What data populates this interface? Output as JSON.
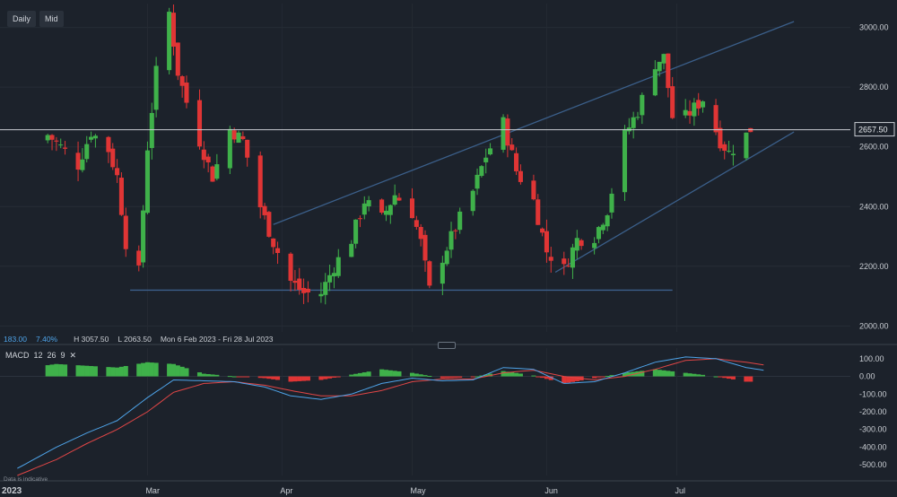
{
  "toolbar": {
    "interval": "Daily",
    "price_type": "Mid"
  },
  "stats": {
    "change": "183.00",
    "change_pct": "7.40%",
    "high": "H 3057.50",
    "low": "L 2063.50",
    "range": "Mon 6 Feb 2023 - Fri 28 Jul 2023"
  },
  "macd": {
    "label": "MACD",
    "fast": "12",
    "slow": "26",
    "signal": "9",
    "close_icon": "close-icon"
  },
  "disclaimer": "Data is indicative",
  "colors": {
    "background": "#1c222b",
    "up": "#3fb14a",
    "down": "#e03535",
    "trendline": "#3b5f8a",
    "macd_line": "#4ea3e8",
    "signal_line": "#e04646",
    "current_price_line": "#c8ccd2"
  },
  "chart_data": [
    {
      "type": "candlestick",
      "title": "",
      "current_price": 2657.5,
      "current_price_label": "2657.50",
      "ylim": [
        1980,
        3080
      ],
      "y_ticks": [
        2000,
        2200,
        2400,
        2600,
        2800,
        3000
      ],
      "y_tick_labels": [
        "2000.00",
        "2200.00",
        "2400.00",
        "2600.00",
        "2800.00",
        "3000.00"
      ],
      "x_labels": [
        "2023",
        "Mar",
        "Apr",
        "May",
        "Jun",
        "Jul"
      ],
      "x_label_dates": [
        "2023-02-01",
        "2023-03-01",
        "2023-04-01",
        "2023-05-01",
        "2023-06-01",
        "2023-07-01"
      ],
      "date_range": [
        "2023-02-06",
        "2023-07-28"
      ],
      "close_anchors": [
        {
          "date": "2023-02-06",
          "close": 2640
        },
        {
          "date": "2023-02-09",
          "close": 2600
        },
        {
          "date": "2023-02-13",
          "close": 2540
        },
        {
          "date": "2023-02-16",
          "close": 2650
        },
        {
          "date": "2023-02-20",
          "close": 2590
        },
        {
          "date": "2023-02-22",
          "close": 2500
        },
        {
          "date": "2023-02-24",
          "close": 2280
        },
        {
          "date": "2023-02-27",
          "close": 2180
        },
        {
          "date": "2023-03-01",
          "close": 2600
        },
        {
          "date": "2023-03-03",
          "close": 2850
        },
        {
          "date": "2023-03-06",
          "close": 3050
        },
        {
          "date": "2023-03-08",
          "close": 2850
        },
        {
          "date": "2023-03-10",
          "close": 2750
        },
        {
          "date": "2023-03-13",
          "close": 2620
        },
        {
          "date": "2023-03-16",
          "close": 2500
        },
        {
          "date": "2023-03-20",
          "close": 2660
        },
        {
          "date": "2023-03-23",
          "close": 2620
        },
        {
          "date": "2023-03-27",
          "close": 2400
        },
        {
          "date": "2023-03-30",
          "close": 2280
        },
        {
          "date": "2023-04-03",
          "close": 2150
        },
        {
          "date": "2023-04-06",
          "close": 2110
        },
        {
          "date": "2023-04-10",
          "close": 2110
        },
        {
          "date": "2023-04-13",
          "close": 2200
        },
        {
          "date": "2023-04-17",
          "close": 2290
        },
        {
          "date": "2023-04-20",
          "close": 2420
        },
        {
          "date": "2023-04-24",
          "close": 2360
        },
        {
          "date": "2023-04-27",
          "close": 2440
        },
        {
          "date": "2023-05-01",
          "close": 2380
        },
        {
          "date": "2023-05-03",
          "close": 2280
        },
        {
          "date": "2023-05-05",
          "close": 2120
        },
        {
          "date": "2023-05-08",
          "close": 2230
        },
        {
          "date": "2023-05-11",
          "close": 2330
        },
        {
          "date": "2023-05-15",
          "close": 2450
        },
        {
          "date": "2023-05-18",
          "close": 2570
        },
        {
          "date": "2023-05-22",
          "close": 2680
        },
        {
          "date": "2023-05-25",
          "close": 2520
        },
        {
          "date": "2023-05-29",
          "close": 2420
        },
        {
          "date": "2023-06-01",
          "close": 2250
        },
        {
          "date": "2023-06-05",
          "close": 2190
        },
        {
          "date": "2023-06-08",
          "close": 2290
        },
        {
          "date": "2023-06-12",
          "close": 2300
        },
        {
          "date": "2023-06-15",
          "close": 2390
        },
        {
          "date": "2023-06-19",
          "close": 2640
        },
        {
          "date": "2023-06-22",
          "close": 2720
        },
        {
          "date": "2023-06-26",
          "close": 2880
        },
        {
          "date": "2023-06-28",
          "close": 2900
        },
        {
          "date": "2023-06-30",
          "close": 2700
        },
        {
          "date": "2023-07-03",
          "close": 2700
        },
        {
          "date": "2023-07-07",
          "close": 2760
        },
        {
          "date": "2023-07-11",
          "close": 2620
        },
        {
          "date": "2023-07-13",
          "close": 2580
        },
        {
          "date": "2023-07-17",
          "close": 2640
        },
        {
          "date": "2023-07-18",
          "close": 2660
        }
      ],
      "trendlines": [
        {
          "name": "upper_channel",
          "from": {
            "date": "2023-03-30",
            "price": 2340
          },
          "to": {
            "date": "2023-07-28",
            "price": 3020
          }
        },
        {
          "name": "lower_channel",
          "from": {
            "date": "2023-06-03",
            "price": 2180
          },
          "to": {
            "date": "2023-07-28",
            "price": 2650
          }
        },
        {
          "name": "support",
          "from": {
            "date": "2023-02-25",
            "price": 2120
          },
          "to": {
            "date": "2023-06-30",
            "price": 2120
          }
        }
      ]
    },
    {
      "type": "macd",
      "series": [
        {
          "name": "MACD",
          "color": "#4ea3e8"
        },
        {
          "name": "Signal",
          "color": "#e04646"
        },
        {
          "name": "Histogram"
        }
      ],
      "ylim": [
        -560,
        160
      ],
      "y_ticks": [
        100,
        0,
        -100,
        -200,
        -300,
        -400,
        -500
      ],
      "y_tick_labels": [
        "100.00",
        "0.00",
        "-100.00",
        "-200.00",
        "-300.00",
        "-400.00",
        "-500.00"
      ],
      "macd_anchors": [
        {
          "date": "2023-01-30",
          "v": -520
        },
        {
          "date": "2023-02-08",
          "v": -400
        },
        {
          "date": "2023-02-15",
          "v": -320
        },
        {
          "date": "2023-02-22",
          "v": -250
        },
        {
          "date": "2023-03-01",
          "v": -120
        },
        {
          "date": "2023-03-07",
          "v": -20
        },
        {
          "date": "2023-03-14",
          "v": -25
        },
        {
          "date": "2023-03-21",
          "v": -30
        },
        {
          "date": "2023-03-28",
          "v": -60
        },
        {
          "date": "2023-04-03",
          "v": -110
        },
        {
          "date": "2023-04-10",
          "v": -130
        },
        {
          "date": "2023-04-17",
          "v": -100
        },
        {
          "date": "2023-04-24",
          "v": -40
        },
        {
          "date": "2023-05-01",
          "v": -10
        },
        {
          "date": "2023-05-08",
          "v": -25
        },
        {
          "date": "2023-05-15",
          "v": -20
        },
        {
          "date": "2023-05-22",
          "v": 50
        },
        {
          "date": "2023-05-29",
          "v": 40
        },
        {
          "date": "2023-06-05",
          "v": -40
        },
        {
          "date": "2023-06-12",
          "v": -30
        },
        {
          "date": "2023-06-19",
          "v": 20
        },
        {
          "date": "2023-06-26",
          "v": 80
        },
        {
          "date": "2023-07-03",
          "v": 110
        },
        {
          "date": "2023-07-10",
          "v": 100
        },
        {
          "date": "2023-07-17",
          "v": 50
        },
        {
          "date": "2023-07-21",
          "v": 35
        }
      ],
      "signal_anchors": [
        {
          "date": "2023-01-30",
          "v": -560
        },
        {
          "date": "2023-02-08",
          "v": -470
        },
        {
          "date": "2023-02-15",
          "v": -380
        },
        {
          "date": "2023-02-22",
          "v": -300
        },
        {
          "date": "2023-03-01",
          "v": -200
        },
        {
          "date": "2023-03-07",
          "v": -90
        },
        {
          "date": "2023-03-14",
          "v": -40
        },
        {
          "date": "2023-03-21",
          "v": -30
        },
        {
          "date": "2023-03-28",
          "v": -50
        },
        {
          "date": "2023-04-03",
          "v": -80
        },
        {
          "date": "2023-04-10",
          "v": -110
        },
        {
          "date": "2023-04-17",
          "v": -110
        },
        {
          "date": "2023-04-24",
          "v": -80
        },
        {
          "date": "2023-05-01",
          "v": -30
        },
        {
          "date": "2023-05-08",
          "v": -15
        },
        {
          "date": "2023-05-15",
          "v": -15
        },
        {
          "date": "2023-05-22",
          "v": 20
        },
        {
          "date": "2023-05-29",
          "v": 35
        },
        {
          "date": "2023-06-05",
          "v": 0
        },
        {
          "date": "2023-06-12",
          "v": -20
        },
        {
          "date": "2023-06-19",
          "v": 0
        },
        {
          "date": "2023-06-26",
          "v": 40
        },
        {
          "date": "2023-07-03",
          "v": 90
        },
        {
          "date": "2023-07-10",
          "v": 100
        },
        {
          "date": "2023-07-17",
          "v": 80
        },
        {
          "date": "2023-07-21",
          "v": 65
        }
      ]
    }
  ]
}
